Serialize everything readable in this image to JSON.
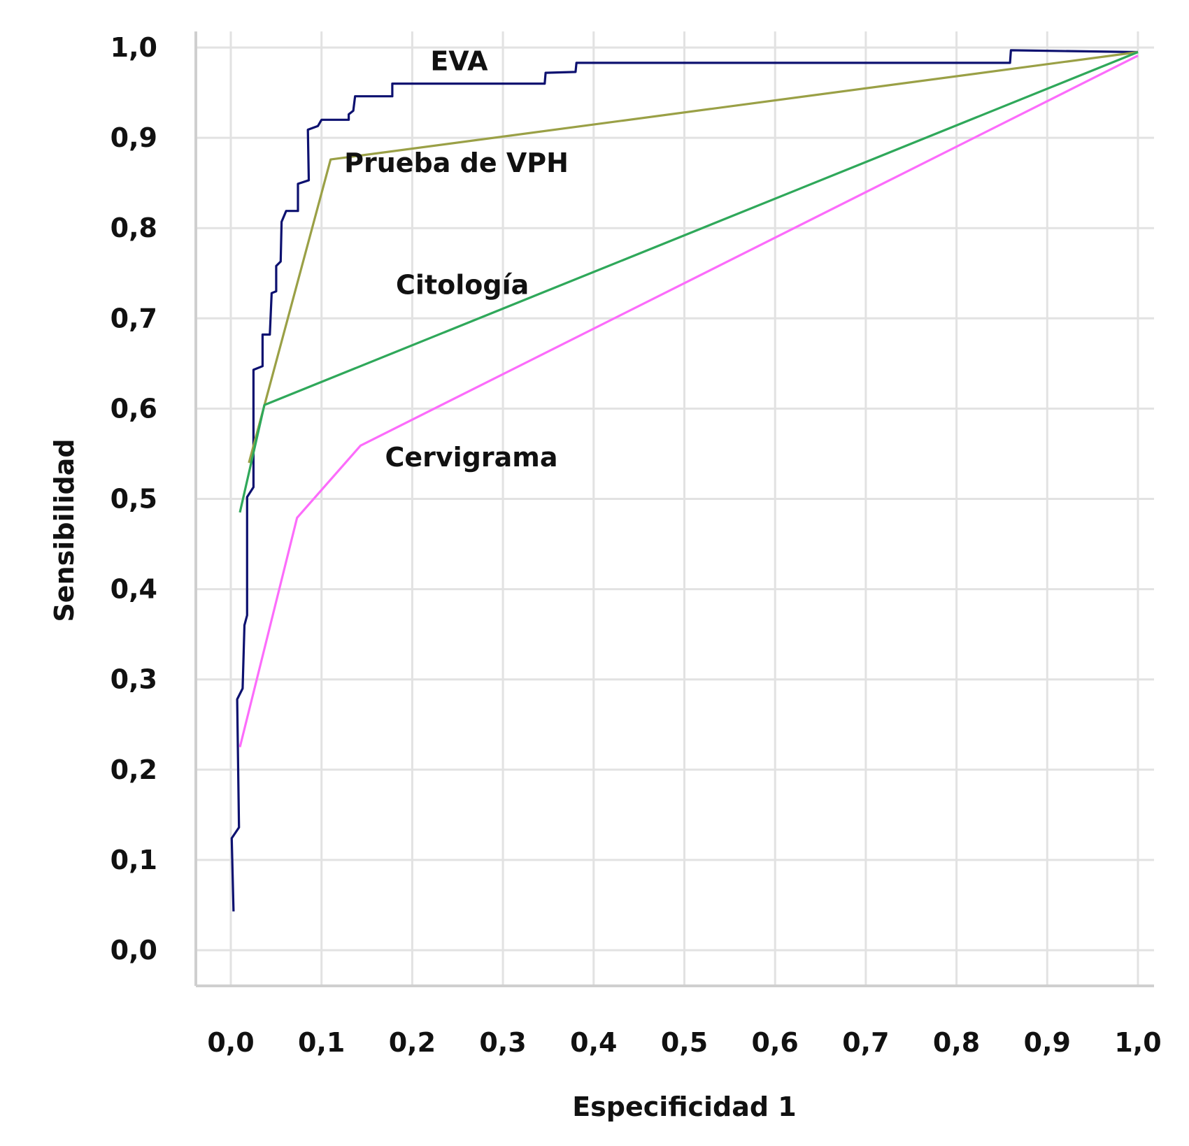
{
  "chart_data": {
    "type": "line",
    "xlabel": "Especificidad 1",
    "ylabel": "Sensibilidad",
    "xlim": [
      0,
      1
    ],
    "ylim": [
      0,
      1
    ],
    "x_ticks": [
      "0,0",
      "0,1",
      "0,2",
      "0,3",
      "0,4",
      "0,5",
      "0,6",
      "0,7",
      "0,8",
      "0,9",
      "1,0"
    ],
    "y_ticks": [
      "0,0",
      "0,1",
      "0,2",
      "0,3",
      "0,4",
      "0,5",
      "0,6",
      "0,7",
      "0,8",
      "0,9",
      "1,0"
    ],
    "grid": true,
    "series": [
      {
        "name": "EVA",
        "color": "#0d1170",
        "points": [
          [
            0.003,
            0.043
          ],
          [
            0.001,
            0.124
          ],
          [
            0.009,
            0.136
          ],
          [
            0.007,
            0.278
          ],
          [
            0.013,
            0.29
          ],
          [
            0.015,
            0.36
          ],
          [
            0.018,
            0.371
          ],
          [
            0.018,
            0.502
          ],
          [
            0.025,
            0.513
          ],
          [
            0.025,
            0.643
          ],
          [
            0.035,
            0.647
          ],
          [
            0.035,
            0.682
          ],
          [
            0.043,
            0.682
          ],
          [
            0.045,
            0.728
          ],
          [
            0.05,
            0.73
          ],
          [
            0.05,
            0.758
          ],
          [
            0.055,
            0.763
          ],
          [
            0.056,
            0.807
          ],
          [
            0.061,
            0.819
          ],
          [
            0.074,
            0.819
          ],
          [
            0.074,
            0.849
          ],
          [
            0.086,
            0.853
          ],
          [
            0.085,
            0.909
          ],
          [
            0.096,
            0.913
          ],
          [
            0.1,
            0.92
          ],
          [
            0.13,
            0.92
          ],
          [
            0.13,
            0.926
          ],
          [
            0.135,
            0.93
          ],
          [
            0.137,
            0.946
          ],
          [
            0.178,
            0.946
          ],
          [
            0.178,
            0.96
          ],
          [
            0.346,
            0.96
          ],
          [
            0.347,
            0.972
          ],
          [
            0.38,
            0.973
          ],
          [
            0.381,
            0.983
          ],
          [
            0.859,
            0.983
          ],
          [
            0.86,
            0.997
          ],
          [
            1.0,
            0.995
          ]
        ]
      },
      {
        "name": "Prueba de VPH",
        "color": "#9aa046",
        "points": [
          [
            0.02,
            0.54
          ],
          [
            0.11,
            0.876
          ],
          [
            1.0,
            0.995
          ]
        ]
      },
      {
        "name": "Citología",
        "color": "#2fa85a",
        "points": [
          [
            0.01,
            0.485
          ],
          [
            0.037,
            0.604
          ],
          [
            1.0,
            0.995
          ]
        ]
      },
      {
        "name": "Cervigrama",
        "color": "#fc6cfb",
        "points": [
          [
            0.01,
            0.225
          ],
          [
            0.073,
            0.479
          ],
          [
            0.143,
            0.559
          ],
          [
            1.0,
            0.991
          ]
        ]
      }
    ]
  }
}
